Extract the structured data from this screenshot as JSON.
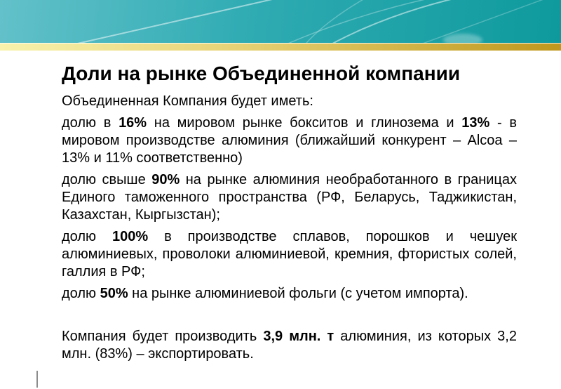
{
  "theme": {
    "header_teal_left": "#63c1ca",
    "header_teal_mid": "#2fabb2",
    "header_teal_right": "#0e9a9d",
    "stripe_gold_left": "#f8f2ac",
    "stripe_gold_right": "#bf971c",
    "text_color": "#111111",
    "cursor_color": "#8c8c8c"
  },
  "slide": {
    "title": "Доли на рынке Объединенной компании",
    "paragraphs": [
      {
        "id": "intro",
        "segments": [
          {
            "text": "Объединенная Компания будет иметь:",
            "bold": false
          }
        ]
      },
      {
        "id": "bauxite-alumina-share",
        "segments": [
          {
            "text": "долю в ",
            "bold": false
          },
          {
            "text": "16%",
            "bold": true
          },
          {
            "text": " на мировом рынке бокситов и глинозема и ",
            "bold": false
          },
          {
            "text": "13%",
            "bold": true
          },
          {
            "text": " - в мировом производстве алюминия (ближайший конкурент – Alcoa – 13% и 11% соответственно)",
            "bold": false
          }
        ]
      },
      {
        "id": "customs-space-share",
        "segments": [
          {
            "text": "долю свыше ",
            "bold": false
          },
          {
            "text": "90%",
            "bold": true
          },
          {
            "text": " на рынке алюминия необработанного в границах Единого таможенного пространства (РФ, Беларусь, Таджикистан, Казахстан, Кыргызстан);",
            "bold": false
          }
        ]
      },
      {
        "id": "alloys-share",
        "segments": [
          {
            "text": "долю ",
            "bold": false
          },
          {
            "text": "100%",
            "bold": true
          },
          {
            "text": " в производстве сплавов, порошков и чешуек алюминиевых, проволоки алюминиевой, кремния, фтористых солей, галлия в РФ;",
            "bold": false
          }
        ]
      },
      {
        "id": "foil-share",
        "segments": [
          {
            "text": "долю ",
            "bold": false
          },
          {
            "text": "50%",
            "bold": true
          },
          {
            "text": " на рынке алюминиевой фольги (с учетом импорта).",
            "bold": false
          }
        ]
      },
      {
        "id": "production-volume",
        "segments": [
          {
            "text": "Компания будет производить ",
            "bold": false
          },
          {
            "text": "3,9 млн. т",
            "bold": true
          },
          {
            "text": " алюминия, из которых 3,2 млн. (83%) – экспортировать.",
            "bold": false
          }
        ]
      }
    ]
  }
}
